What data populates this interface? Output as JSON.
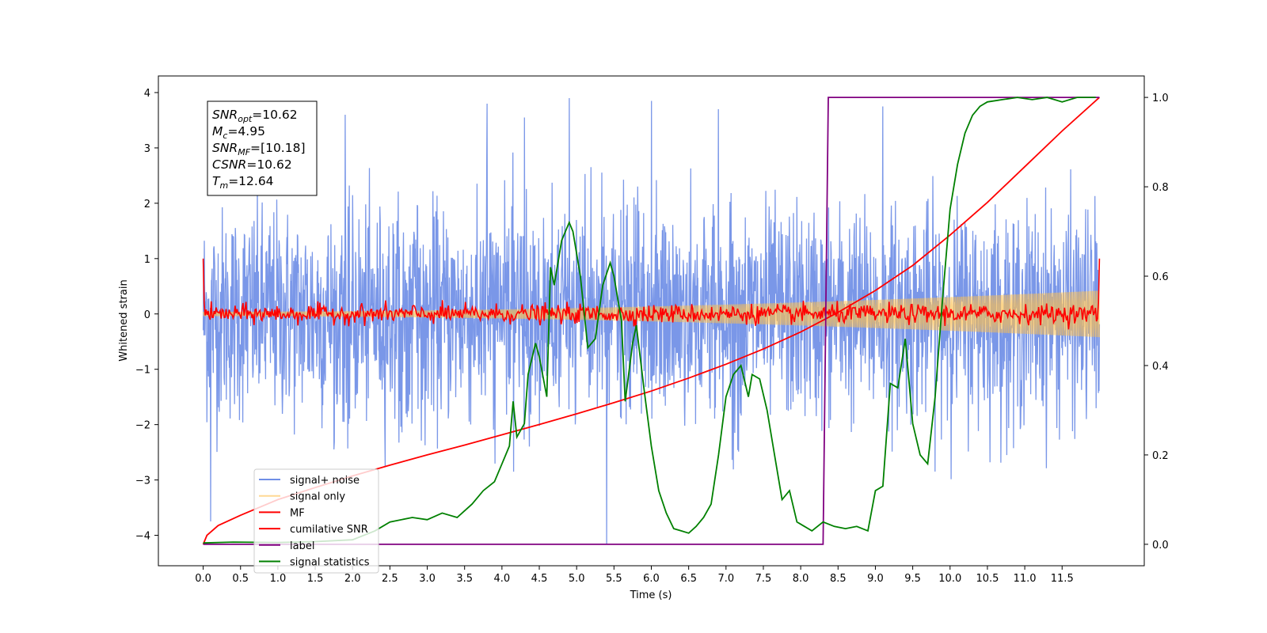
{
  "chart_data": {
    "type": "line",
    "xlabel": "Time (s)",
    "ylabel_left": "Whitened strain",
    "ylabel_right": "",
    "xlim": [
      -0.6,
      12.6
    ],
    "ylim_left": [
      -4.55,
      4.3
    ],
    "ylim_right": [
      -0.048,
      1.048
    ],
    "x_ticks": [
      0.0,
      0.5,
      1.0,
      1.5,
      2.0,
      2.5,
      3.0,
      3.5,
      4.0,
      4.5,
      5.0,
      5.5,
      6.0,
      6.5,
      7.0,
      7.5,
      8.0,
      8.5,
      9.0,
      9.5,
      10.0,
      10.5,
      11.0,
      11.5
    ],
    "x_tick_labels": [
      "0.0",
      "0.5",
      "1.0",
      "1.5",
      "2.0",
      "2.5",
      "3.0",
      "3.5",
      "4.0",
      "4.5",
      "5.0",
      "5.5",
      "6.0",
      "6.5",
      "7.0",
      "7.5",
      "8.0",
      "8.5",
      "9.0",
      "9.5",
      "10.0",
      "10.5",
      "11.0",
      "11.5"
    ],
    "y_ticks_left": [
      4,
      3,
      2,
      1,
      0,
      -1,
      -2,
      -3,
      -4
    ],
    "y_tick_labels_left": [
      "4",
      "3",
      "2",
      "1",
      "0",
      "−1",
      "−2",
      "−3",
      "−4"
    ],
    "y_ticks_right": [
      1.0,
      0.8,
      0.6,
      0.4,
      0.2,
      0.0
    ],
    "y_tick_labels_right": [
      "1.0",
      "0.8",
      "0.6",
      "0.4",
      "0.2",
      "0.0"
    ],
    "grid": false,
    "legend_position": "bottom-left",
    "annotation": {
      "lines": [
        {
          "name": "SNR",
          "sub": "opt",
          "value": "=10.62"
        },
        {
          "name": "M",
          "sub": "c",
          "value": "=4.95"
        },
        {
          "name": "SNR",
          "sub": "MF",
          "value": "=[10.18]"
        },
        {
          "name": "CSNR",
          "sub": "",
          "value": "=10.62"
        },
        {
          "name": "T",
          "sub": "m",
          "value": "=12.64"
        }
      ]
    },
    "series": [
      {
        "name": "signal+ noise",
        "color": "#6f8ee6",
        "axis": "left",
        "style": "noise",
        "x_range": [
          0.0,
          12.0
        ],
        "envelope": 2.3,
        "extremes": [
          {
            "x": 0.1,
            "y": -3.75
          },
          {
            "x": 1.9,
            "y": 3.6
          },
          {
            "x": 3.8,
            "y": 3.8
          },
          {
            "x": 4.9,
            "y": 3.9
          },
          {
            "x": 5.4,
            "y": -4.15
          },
          {
            "x": 6.0,
            "y": 3.85
          },
          {
            "x": 6.9,
            "y": 3.7
          },
          {
            "x": 9.1,
            "y": 3.75
          },
          {
            "x": 4.3,
            "y": 3.55
          }
        ]
      },
      {
        "name": "signal only",
        "color": "#ffc04d",
        "axis": "left",
        "style": "chirp_band",
        "x_range": [
          0.0,
          12.0
        ],
        "amp_start": 0.04,
        "amp_end": 0.42
      },
      {
        "name": "MF",
        "color": "#ff0000",
        "axis": "left",
        "style": "mf",
        "x_range": [
          0.0,
          12.0
        ],
        "edge_value": 1.0,
        "jitter": 0.14
      },
      {
        "name": "cumilative SNR",
        "color": "#ff0000",
        "axis": "right",
        "x": [
          0.0,
          0.05,
          0.2,
          0.5,
          1.0,
          1.5,
          2.0,
          2.5,
          3.0,
          3.5,
          4.0,
          4.5,
          5.0,
          5.5,
          6.0,
          6.5,
          7.0,
          7.5,
          8.0,
          8.5,
          9.0,
          9.5,
          10.0,
          10.5,
          11.0,
          11.5,
          12.0
        ],
        "values": [
          0.0,
          0.02,
          0.042,
          0.065,
          0.1,
          0.127,
          0.153,
          0.177,
          0.2,
          0.222,
          0.245,
          0.268,
          0.292,
          0.317,
          0.343,
          0.372,
          0.403,
          0.437,
          0.475,
          0.519,
          0.568,
          0.624,
          0.692,
          0.765,
          0.845,
          0.925,
          1.0
        ]
      },
      {
        "name": "label",
        "color": "#800080",
        "axis": "right",
        "x": [
          0.0,
          8.3,
          8.37,
          12.0
        ],
        "values": [
          0.0,
          0.0,
          1.0,
          1.0
        ]
      },
      {
        "name": "signal statistics",
        "color": "#008000",
        "axis": "right",
        "x": [
          0.0,
          0.4,
          1.0,
          1.5,
          2.0,
          2.3,
          2.5,
          2.8,
          3.0,
          3.2,
          3.4,
          3.6,
          3.75,
          3.9,
          4.0,
          4.1,
          4.15,
          4.2,
          4.3,
          4.35,
          4.45,
          4.5,
          4.6,
          4.65,
          4.7,
          4.8,
          4.9,
          4.95,
          5.05,
          5.15,
          5.25,
          5.35,
          5.45,
          5.5,
          5.6,
          5.65,
          5.75,
          5.8,
          5.9,
          6.0,
          6.1,
          6.2,
          6.3,
          6.4,
          6.5,
          6.6,
          6.7,
          6.8,
          6.9,
          7.0,
          7.1,
          7.2,
          7.3,
          7.35,
          7.45,
          7.55,
          7.65,
          7.75,
          7.85,
          7.95,
          8.05,
          8.15,
          8.3,
          8.45,
          8.6,
          8.75,
          8.9,
          9.0,
          9.1,
          9.2,
          9.3,
          9.4,
          9.5,
          9.6,
          9.7,
          9.8,
          9.9,
          10.0,
          10.1,
          10.2,
          10.3,
          10.4,
          10.5,
          10.7,
          10.9,
          11.1,
          11.3,
          11.5,
          11.7,
          11.95
        ],
        "values": [
          0.003,
          0.005,
          0.004,
          0.006,
          0.01,
          0.03,
          0.05,
          0.06,
          0.055,
          0.07,
          0.06,
          0.09,
          0.12,
          0.14,
          0.18,
          0.22,
          0.32,
          0.24,
          0.27,
          0.38,
          0.45,
          0.42,
          0.33,
          0.62,
          0.58,
          0.68,
          0.72,
          0.7,
          0.6,
          0.44,
          0.46,
          0.58,
          0.63,
          0.6,
          0.5,
          0.32,
          0.45,
          0.49,
          0.35,
          0.22,
          0.12,
          0.07,
          0.035,
          0.03,
          0.025,
          0.04,
          0.06,
          0.09,
          0.2,
          0.33,
          0.38,
          0.4,
          0.33,
          0.38,
          0.37,
          0.3,
          0.2,
          0.1,
          0.12,
          0.05,
          0.04,
          0.03,
          0.05,
          0.04,
          0.035,
          0.04,
          0.03,
          0.12,
          0.13,
          0.36,
          0.35,
          0.46,
          0.27,
          0.2,
          0.18,
          0.33,
          0.55,
          0.75,
          0.85,
          0.92,
          0.96,
          0.98,
          0.99,
          0.995,
          1.0,
          0.995,
          1.0,
          0.99,
          1.0,
          1.0
        ]
      }
    ]
  }
}
